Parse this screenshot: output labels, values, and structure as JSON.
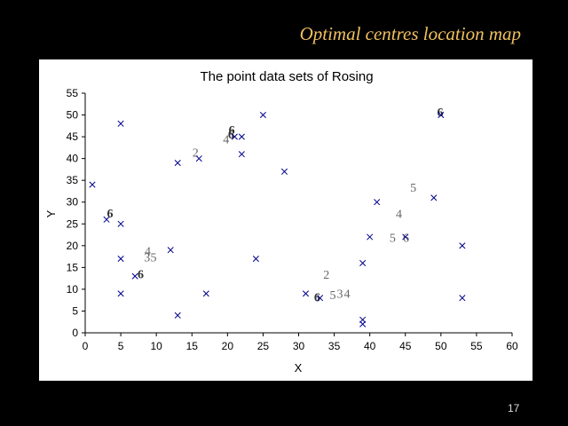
{
  "slide": {
    "title": "Optimal centres location map",
    "number": "17"
  },
  "colors": {
    "background": "#000000",
    "title": "#f0c060",
    "marker": "#00008b",
    "candidate_label": "#666666",
    "candidate_label_bold": "#333333",
    "axis": "#000000"
  },
  "chart_data": {
    "type": "scatter",
    "title": "The point data sets of Rosing",
    "xlabel": "X",
    "ylabel": "Y",
    "xlim": [
      0,
      60
    ],
    "ylim": [
      0,
      55
    ],
    "xticks": [
      0,
      5,
      10,
      15,
      20,
      25,
      30,
      35,
      40,
      45,
      50,
      55,
      60
    ],
    "yticks": [
      0,
      5,
      10,
      15,
      20,
      25,
      30,
      35,
      40,
      45,
      50,
      55
    ],
    "grid": false,
    "marker": "x",
    "points": [
      {
        "x": 1,
        "y": 34
      },
      {
        "x": 3,
        "y": 26
      },
      {
        "x": 5,
        "y": 48
      },
      {
        "x": 5,
        "y": 25
      },
      {
        "x": 5,
        "y": 17
      },
      {
        "x": 5,
        "y": 9
      },
      {
        "x": 7,
        "y": 13
      },
      {
        "x": 12,
        "y": 19
      },
      {
        "x": 13,
        "y": 39
      },
      {
        "x": 13,
        "y": 4
      },
      {
        "x": 16,
        "y": 40
      },
      {
        "x": 17,
        "y": 9
      },
      {
        "x": 21,
        "y": 45
      },
      {
        "x": 22,
        "y": 45
      },
      {
        "x": 22,
        "y": 41
      },
      {
        "x": 24,
        "y": 17
      },
      {
        "x": 25,
        "y": 50
      },
      {
        "x": 28,
        "y": 37
      },
      {
        "x": 31,
        "y": 9
      },
      {
        "x": 33,
        "y": 8
      },
      {
        "x": 39,
        "y": 16
      },
      {
        "x": 39,
        "y": 3
      },
      {
        "x": 39,
        "y": 2
      },
      {
        "x": 40,
        "y": 22
      },
      {
        "x": 41,
        "y": 30
      },
      {
        "x": 45,
        "y": 22
      },
      {
        "x": 49,
        "y": 31
      },
      {
        "x": 50,
        "y": 50
      },
      {
        "x": 53,
        "y": 20
      },
      {
        "x": 53,
        "y": 8
      }
    ],
    "centre_labels": [
      {
        "text": "6",
        "x": 3.5,
        "y": 27.5,
        "bold": true
      },
      {
        "text": "6",
        "x": 7.8,
        "y": 13.5,
        "bold": true
      },
      {
        "text": "4",
        "x": 8.8,
        "y": 18.8,
        "bold": false
      },
      {
        "text": "3",
        "x": 8.7,
        "y": 17.4,
        "bold": false
      },
      {
        "text": "5",
        "x": 9.6,
        "y": 17.4,
        "bold": false
      },
      {
        "text": "2",
        "x": 15.5,
        "y": 41.5,
        "bold": false
      },
      {
        "text": "4",
        "x": 19.8,
        "y": 44.5,
        "bold": false
      },
      {
        "text": "6",
        "x": 20.5,
        "y": 45.6,
        "bold": true
      },
      {
        "text": "6",
        "x": 20.6,
        "y": 46.6,
        "bold": true
      },
      {
        "text": "6",
        "x": 32.6,
        "y": 8.3,
        "bold": true
      },
      {
        "text": "2",
        "x": 33.9,
        "y": 13.4,
        "bold": false
      },
      {
        "text": "5",
        "x": 34.8,
        "y": 8.8,
        "bold": false
      },
      {
        "text": "3",
        "x": 35.8,
        "y": 9.1,
        "bold": false
      },
      {
        "text": "4",
        "x": 36.8,
        "y": 9.1,
        "bold": false
      },
      {
        "text": "5",
        "x": 46.1,
        "y": 33.4,
        "bold": false
      },
      {
        "text": "4",
        "x": 44.1,
        "y": 27.4,
        "bold": false
      },
      {
        "text": "5",
        "x": 43.2,
        "y": 21.9,
        "bold": false
      },
      {
        "text": "6",
        "x": 45.1,
        "y": 21.9,
        "bold": false
      },
      {
        "text": "6",
        "x": 49.9,
        "y": 50.7,
        "bold": true
      }
    ]
  }
}
